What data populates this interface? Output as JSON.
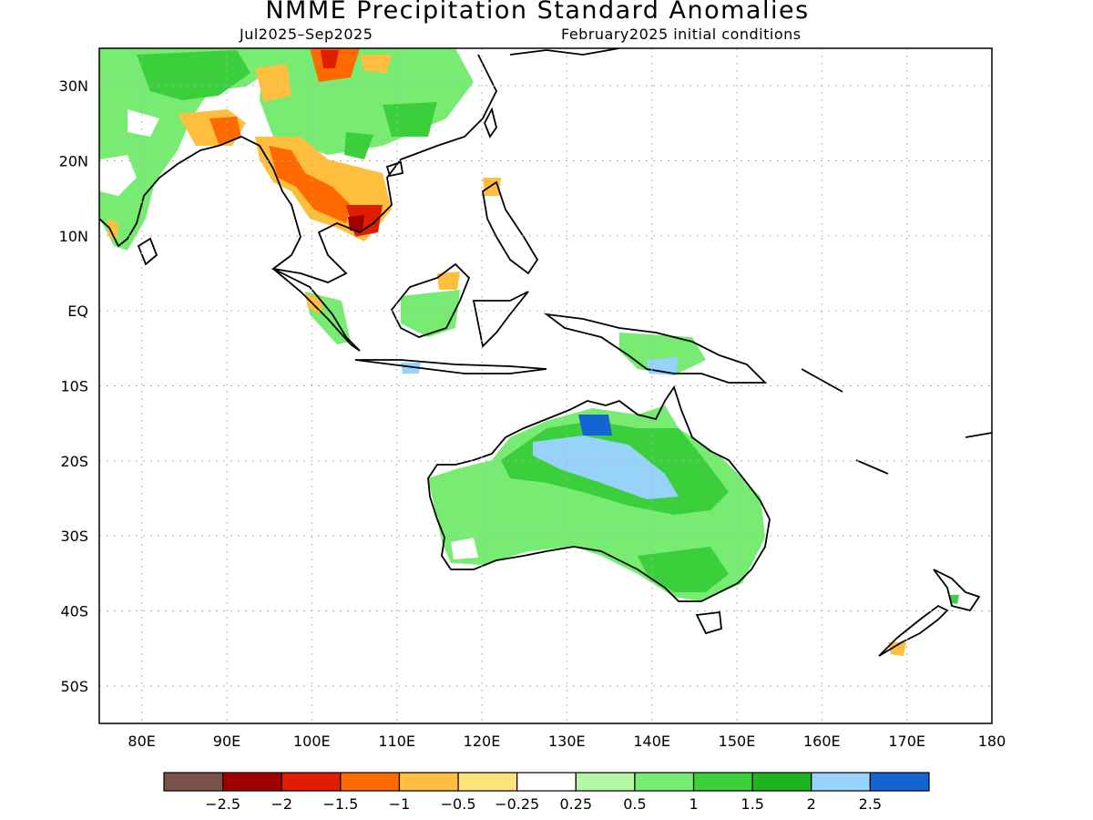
{
  "title": "NMME Precipitation Standard Anomalies",
  "subtitle_left": "Jul2025–Sep2025",
  "subtitle_right": "February2025 initial conditions",
  "lat_labels": [
    "30N",
    "20N",
    "10N",
    "EQ",
    "10S",
    "20S",
    "30S",
    "40S",
    "50S"
  ],
  "lat_values": [
    30,
    20,
    10,
    0,
    -10,
    -20,
    -30,
    -40,
    -50
  ],
  "lon_labels": [
    "80E",
    "90E",
    "100E",
    "110E",
    "120E",
    "130E",
    "140E",
    "150E",
    "160E",
    "170E",
    "180"
  ],
  "lon_values": [
    80,
    90,
    100,
    110,
    120,
    130,
    140,
    150,
    160,
    170,
    180
  ],
  "map_extent": {
    "lon": [
      75,
      180
    ],
    "lat": [
      -55,
      35
    ]
  },
  "colorbar": {
    "colors": [
      "#7b5248",
      "#a00000",
      "#e01d00",
      "#ff6a00",
      "#ffbe3d",
      "#ffe27a",
      "#ffffff",
      "#b4f7a4",
      "#78eb73",
      "#3ccf3c",
      "#1eb41e",
      "#96d2fa",
      "#1464d2"
    ],
    "labels": [
      "−2.5",
      "−2",
      "−1.5",
      "−1",
      "−0.5",
      "−0.25",
      "0.25",
      "0.5",
      "1",
      "1.5",
      "2",
      "2.5"
    ]
  }
}
